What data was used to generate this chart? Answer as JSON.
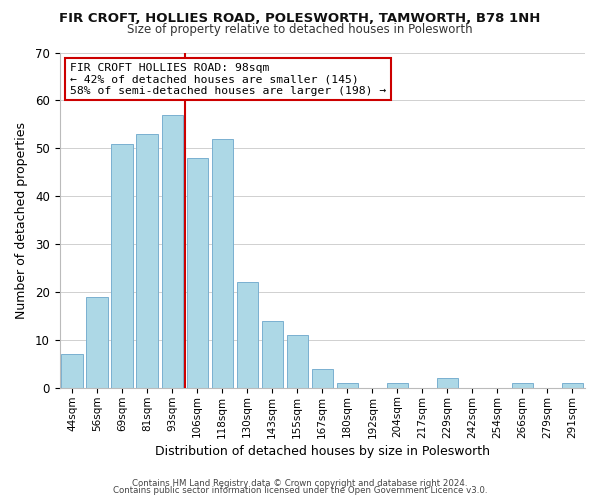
{
  "title": "FIR CROFT, HOLLIES ROAD, POLESWORTH, TAMWORTH, B78 1NH",
  "subtitle": "Size of property relative to detached houses in Polesworth",
  "xlabel": "Distribution of detached houses by size in Polesworth",
  "ylabel": "Number of detached properties",
  "bar_labels": [
    "44sqm",
    "56sqm",
    "69sqm",
    "81sqm",
    "93sqm",
    "106sqm",
    "118sqm",
    "130sqm",
    "143sqm",
    "155sqm",
    "167sqm",
    "180sqm",
    "192sqm",
    "204sqm",
    "217sqm",
    "229sqm",
    "242sqm",
    "254sqm",
    "266sqm",
    "279sqm",
    "291sqm"
  ],
  "bar_values": [
    7,
    19,
    51,
    53,
    57,
    48,
    52,
    22,
    14,
    11,
    4,
    1,
    0,
    1,
    0,
    2,
    0,
    0,
    1,
    0,
    1
  ],
  "bar_color": "#add8e6",
  "bar_edgecolor": "#7ab0d0",
  "vline_x": 4.5,
  "vline_color": "#cc0000",
  "annotation_text": "FIR CROFT HOLLIES ROAD: 98sqm\n← 42% of detached houses are smaller (145)\n58% of semi-detached houses are larger (198) →",
  "annotation_box_edgecolor": "#cc0000",
  "annotation_box_facecolor": "#ffffff",
  "ylim": [
    0,
    70
  ],
  "yticks": [
    0,
    10,
    20,
    30,
    40,
    50,
    60,
    70
  ],
  "footnote1": "Contains HM Land Registry data © Crown copyright and database right 2024.",
  "footnote2": "Contains public sector information licensed under the Open Government Licence v3.0."
}
